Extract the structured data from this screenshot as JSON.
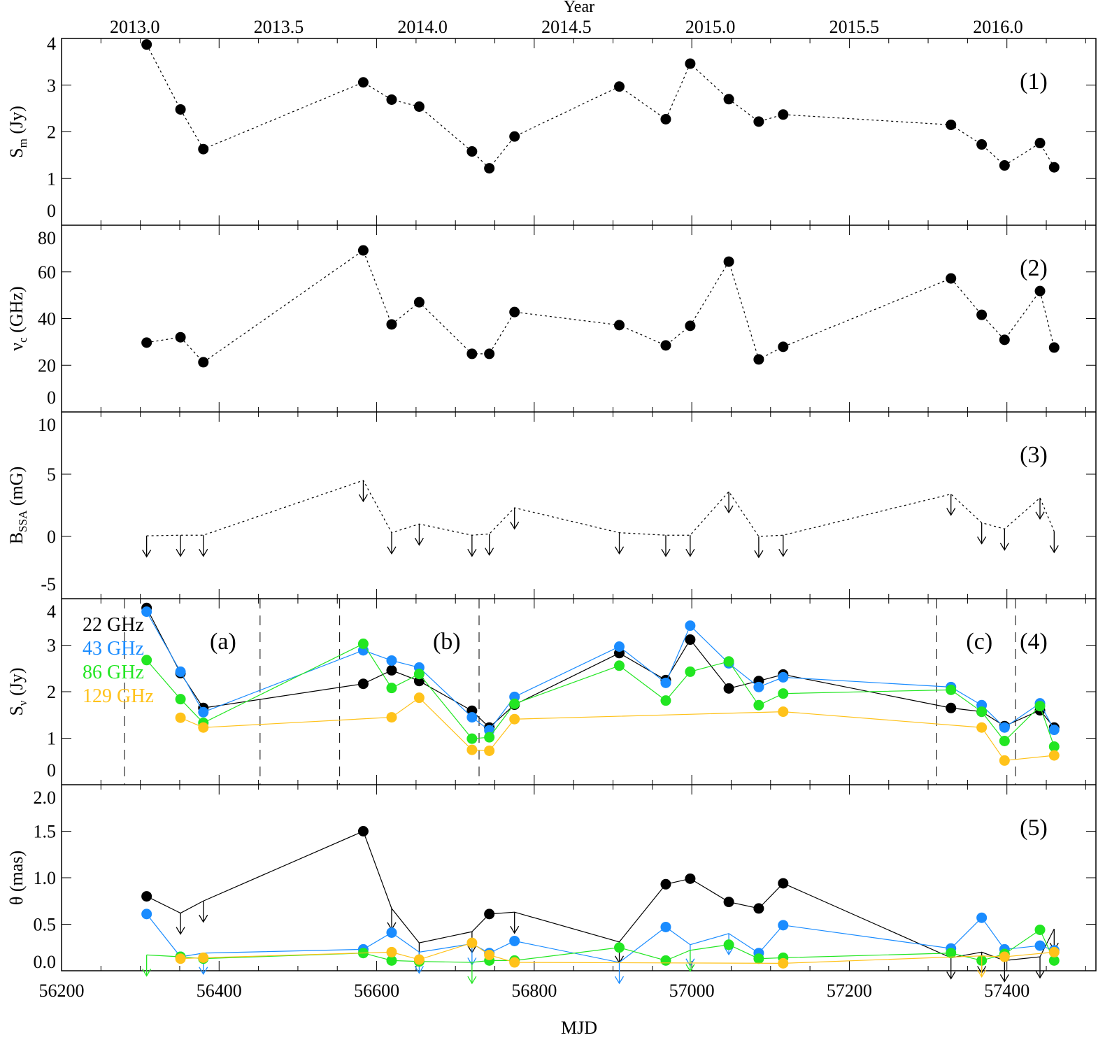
{
  "chart_data": {
    "type": "scatter",
    "top_axis": {
      "label": "Year",
      "ticks": [
        "2013.0",
        "2013.5",
        "2014.0",
        "2014.5",
        "2015.0",
        "2015.5",
        "2016.0"
      ],
      "tick_values": [
        2013.0,
        2013.5,
        2014.0,
        2014.5,
        2015.0,
        2015.5,
        2016.0
      ]
    },
    "x_axis": {
      "label": "MJD",
      "range": [
        56200,
        57513
      ],
      "ticks": [
        "56200",
        "56400",
        "56600",
        "56800",
        "57000",
        "57200",
        "57400"
      ],
      "tick_values": [
        56200,
        56400,
        56600,
        56800,
        57000,
        57200,
        57400
      ]
    },
    "x": [
      56308,
      56351,
      56380,
      56583,
      56619,
      56654,
      56721,
      56743,
      56775,
      56908,
      56967,
      56998,
      57047,
      57085,
      57116,
      57329,
      57368,
      57397,
      57442,
      57460
    ],
    "colors": {
      "22 GHz": "#000000",
      "43 GHz": "#1a8cff",
      "86 GHz": "#22e622",
      "129 GHz": "#ffc21a"
    },
    "panels": [
      {
        "tag": "(1)",
        "ylabel": "S",
        "ylabel_sub": "m",
        "ylabel_unit": " (Jy)",
        "ylim": [
          0,
          4
        ],
        "ticks": [
          "0",
          "1",
          "2",
          "3",
          "4"
        ],
        "tick_values": [
          0,
          1,
          2,
          3,
          4
        ],
        "line": "dotted",
        "series": [
          {
            "color": "#000000",
            "values": [
              3.87,
              2.48,
              1.63,
              3.06,
              2.69,
              2.54,
              1.58,
              1.22,
              1.9,
              2.97,
              2.27,
              3.46,
              2.7,
              2.22,
              2.37,
              2.15,
              1.73,
              1.28,
              1.76,
              1.24
            ]
          }
        ]
      },
      {
        "tag": "(2)",
        "ylabel": "ν",
        "ylabel_sub": "c",
        "ylabel_unit": " (GHz)",
        "ylim": [
          0,
          80
        ],
        "ticks": [
          "0",
          "20",
          "40",
          "60",
          "80"
        ],
        "tick_values": [
          0,
          20,
          40,
          60,
          80
        ],
        "line": "dotted",
        "series": [
          {
            "color": "#000000",
            "values": [
              29.7,
              32,
              21.3,
              69.2,
              37.5,
              47,
              24.9,
              24.9,
              42.8,
              37.2,
              28.5,
              36.9,
              64.4,
              22.5,
              27.9,
              57.2,
              41.6,
              30.9,
              51.8,
              27.6
            ]
          }
        ]
      },
      {
        "tag": "(3)",
        "ylabel": "B",
        "ylabel_sub": "SSA",
        "ylabel_unit": " (mG)",
        "ylim": [
          -5,
          10
        ],
        "ticks": [
          "-5",
          "0",
          "5",
          "10"
        ],
        "tick_values": [
          -5,
          0,
          5,
          10
        ],
        "line": "dotted",
        "series": [
          {
            "color": "#000000",
            "values": [
              0.05,
              0.1,
              0.1,
              4.5,
              0.3,
              1.0,
              0.1,
              0.2,
              2.3,
              0.3,
              0.1,
              0.1,
              3.6,
              0.0,
              0.1,
              3.4,
              1.1,
              0.6,
              3.1,
              0.4
            ],
            "upper_limit": "all"
          }
        ]
      },
      {
        "tag": "(4)",
        "ylabel": "S",
        "ylabel_sub": "ν",
        "ylabel_unit": " (Jy)",
        "ylim": [
          0,
          4
        ],
        "ticks": [
          "0",
          "1",
          "2",
          "3",
          "4"
        ],
        "tick_values": [
          0,
          1,
          2,
          3,
          4
        ],
        "line": "solid",
        "period_boundaries": [
          56280,
          56452,
          56553,
          56730,
          57311,
          57411
        ],
        "period_labels": [
          {
            "text": "(a)",
            "x": 56405
          },
          {
            "text": "(b)",
            "x": 56689
          },
          {
            "text": "(c)",
            "x": 57365
          }
        ],
        "legend": [
          "22 GHz",
          "43 GHz",
          "86 GHz",
          "129 GHz"
        ],
        "legend_position": "top-left",
        "series": [
          {
            "name": "22 GHz",
            "color": "#000000",
            "values": [
              3.8,
              2.4,
              1.65,
              2.17,
              2.46,
              2.23,
              1.59,
              1.23,
              1.72,
              2.83,
              2.25,
              3.12,
              2.07,
              2.23,
              2.37,
              1.65,
              1.57,
              1.26,
              1.6,
              1.23
            ]
          },
          {
            "name": "43 GHz",
            "color": "#1a8cff",
            "values": [
              3.72,
              2.43,
              1.56,
              2.89,
              2.67,
              2.52,
              1.45,
              1.17,
              1.89,
              2.97,
              2.19,
              3.42,
              2.61,
              2.1,
              2.31,
              2.1,
              1.71,
              1.23,
              1.75,
              1.18
            ]
          },
          {
            "name": "86 GHz",
            "color": "#22e622",
            "values": [
              2.68,
              1.84,
              1.33,
              3.03,
              2.08,
              2.38,
              0.99,
              1.02,
              1.74,
              2.56,
              1.81,
              2.43,
              2.65,
              1.71,
              1.96,
              2.04,
              1.57,
              0.94,
              1.69,
              0.82
            ]
          },
          {
            "name": "129 GHz",
            "color": "#ffc21a",
            "values": [
              null,
              1.44,
              1.23,
              null,
              1.45,
              1.87,
              0.75,
              0.73,
              1.41,
              null,
              null,
              null,
              null,
              null,
              1.57,
              null,
              1.23,
              0.52,
              null,
              0.63
            ]
          }
        ]
      },
      {
        "tag": "(5)",
        "ylabel": "θ",
        "ylabel_sub": "",
        "ylabel_unit": " (mas)",
        "ylim": [
          0,
          2
        ],
        "ticks": [
          "0.0",
          "0.5",
          "1.0",
          "1.5",
          "2.0"
        ],
        "tick_values": [
          0,
          0.5,
          1,
          1.5,
          2
        ],
        "line": "solid",
        "series": [
          {
            "name": "22 GHz",
            "color": "#000000",
            "values": [
              0.8,
              0.62,
              0.75,
              1.5,
              0.67,
              0.3,
              0.42,
              0.61,
              0.63,
              0.31,
              0.93,
              0.99,
              0.74,
              0.67,
              0.94,
              0.14,
              0.2,
              0.11,
              0.15,
              0.45
            ],
            "upper_limits": [
              false,
              true,
              true,
              false,
              true,
              true,
              true,
              false,
              true,
              true,
              false,
              false,
              false,
              false,
              false,
              true,
              true,
              true,
              true,
              true
            ]
          },
          {
            "name": "43 GHz",
            "color": "#1a8cff",
            "values": [
              0.61,
              0.15,
              0.19,
              0.23,
              0.41,
              0.2,
              0.29,
              0.19,
              0.32,
              0.09,
              0.47,
              0.28,
              0.4,
              0.19,
              0.49,
              0.24,
              0.57,
              0.23,
              0.27,
              0.22
            ],
            "upper_limits": [
              false,
              false,
              true,
              false,
              false,
              true,
              true,
              false,
              false,
              true,
              false,
              true,
              true,
              false,
              false,
              false,
              false,
              false,
              false,
              false
            ]
          },
          {
            "name": "86 GHz",
            "color": "#22e622",
            "values": [
              0.17,
              0.15,
              0.13,
              0.19,
              0.11,
              0.1,
              0.09,
              0.11,
              0.11,
              0.25,
              0.11,
              0.22,
              0.28,
              0.13,
              0.14,
              0.19,
              0.11,
              0.18,
              0.44,
              0.11
            ],
            "upper_limits": [
              true,
              false,
              false,
              false,
              false,
              false,
              true,
              false,
              false,
              false,
              false,
              true,
              false,
              false,
              false,
              false,
              false,
              false,
              false,
              false
            ]
          },
          {
            "name": "129 GHz",
            "color": "#ffc21a",
            "values": [
              null,
              0.13,
              0.14,
              null,
              0.2,
              0.12,
              0.3,
              0.17,
              0.09,
              null,
              null,
              null,
              null,
              null,
              0.08,
              null,
              0.16,
              0.15,
              null,
              0.2
            ],
            "upper_limits": [
              false,
              false,
              false,
              false,
              false,
              false,
              false,
              false,
              false,
              false,
              false,
              false,
              false,
              false,
              false,
              false,
              true,
              false,
              false,
              false
            ]
          }
        ]
      }
    ]
  }
}
